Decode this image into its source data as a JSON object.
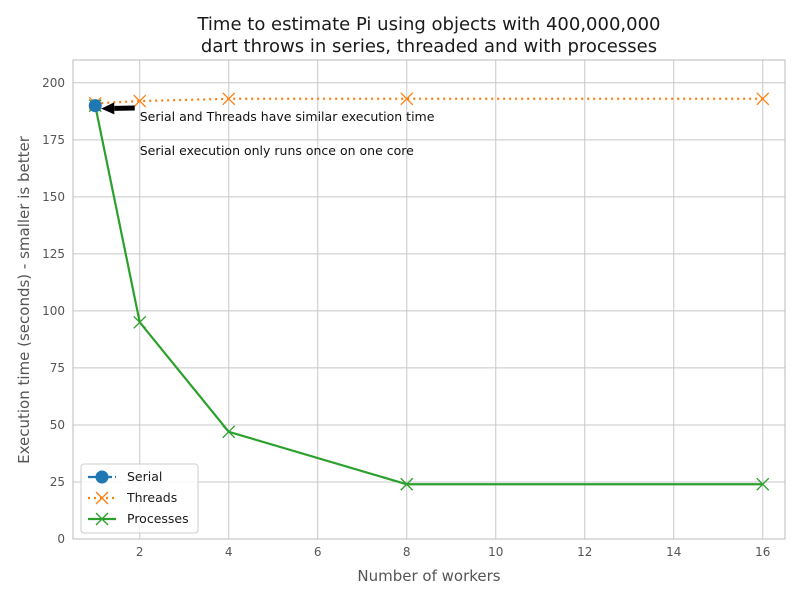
{
  "chart_data": {
    "type": "line",
    "title_lines": [
      "Time to estimate Pi using objects with 400,000,000",
      "dart throws in series, threaded and with processes"
    ],
    "xlabel": "Number of workers",
    "ylabel": "Execution time (seconds) - smaller is better",
    "xlim": [
      0.5,
      16.5
    ],
    "ylim": [
      0,
      210
    ],
    "x_ticks": [
      2,
      4,
      6,
      8,
      10,
      12,
      14,
      16
    ],
    "y_ticks": [
      0,
      25,
      50,
      75,
      100,
      125,
      150,
      175,
      200
    ],
    "grid": true,
    "legend_position": "lower-left",
    "series": [
      {
        "name": "Serial",
        "color": "#1f77b4",
        "line_style": "dash-dot",
        "marker": "circle",
        "x": [
          1
        ],
        "y": [
          190
        ]
      },
      {
        "name": "Threads",
        "color": "#ff7f0e",
        "line_style": "dotted",
        "marker": "x",
        "x": [
          1,
          2,
          4,
          8,
          16
        ],
        "y": [
          191,
          192,
          193,
          193,
          193
        ]
      },
      {
        "name": "Processes",
        "color": "#2ca02c",
        "line_style": "solid",
        "marker": "x",
        "x": [
          1,
          2,
          4,
          8,
          16
        ],
        "y": [
          190,
          95,
          47,
          24,
          24
        ]
      }
    ],
    "annotations": [
      {
        "text": "Serial and Threads have similar execution time",
        "x": 2,
        "y": 185,
        "arrow_to": {
          "x": 1,
          "y": 190
        }
      },
      {
        "text": "Serial execution only runs once on one core",
        "x": 2,
        "y": 170
      }
    ]
  }
}
